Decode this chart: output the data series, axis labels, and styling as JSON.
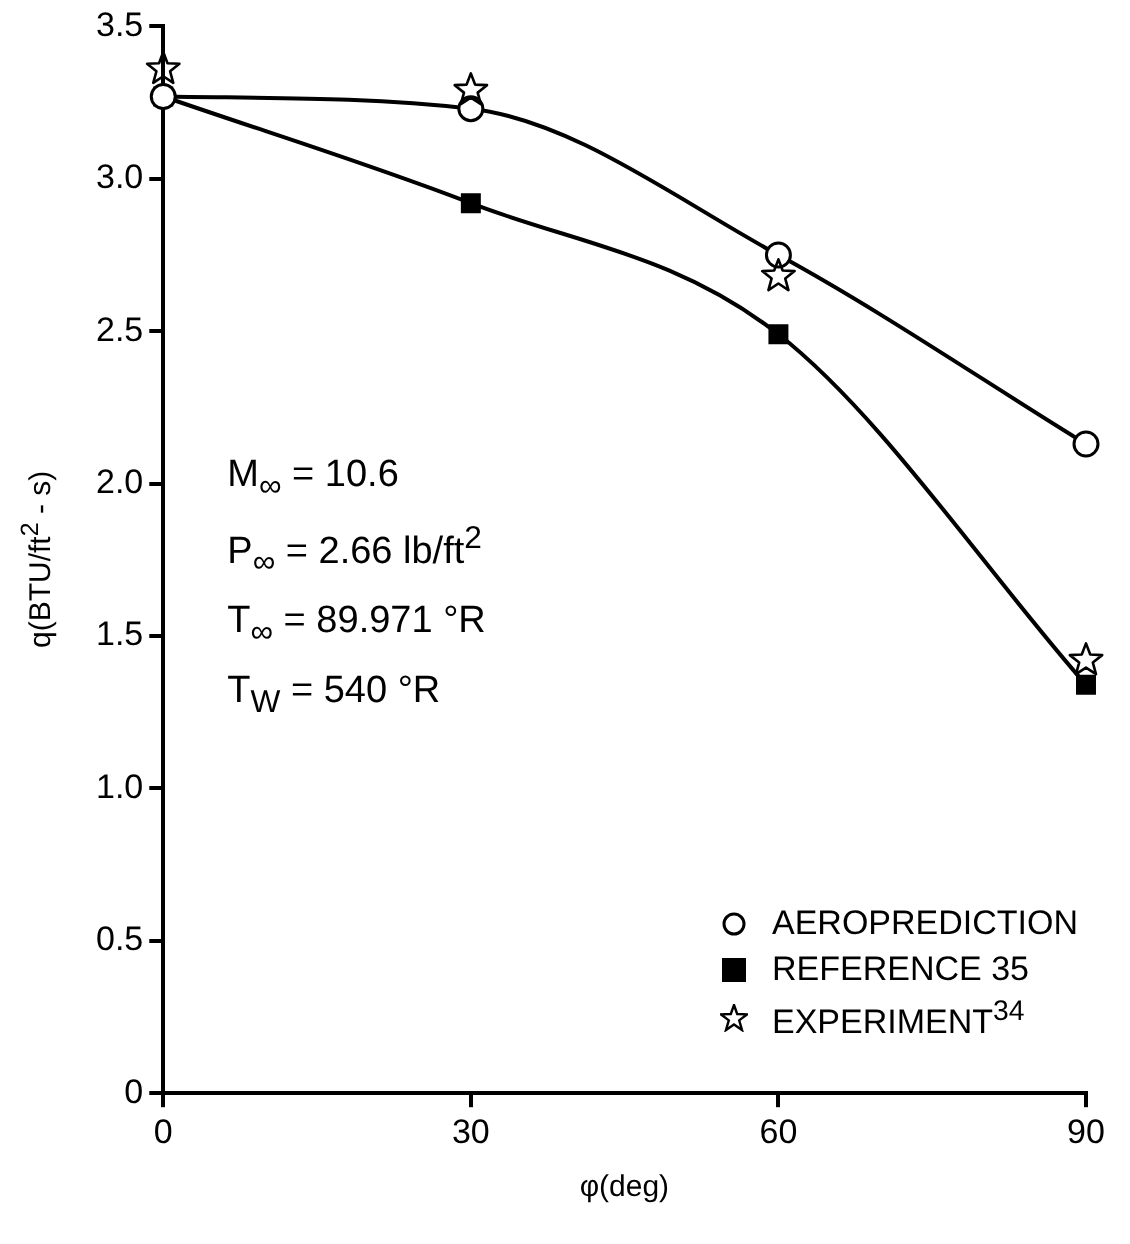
{
  "chart_data": {
    "type": "line",
    "xlabel": "φ(deg)",
    "ylabel": "q(BTU/ft$^{2}$ - s)",
    "x": [
      0,
      30,
      60,
      90
    ],
    "xlim": [
      0,
      90
    ],
    "xticks": [
      0,
      30,
      60,
      90
    ],
    "ylim": [
      0,
      3.5
    ],
    "yticks": [
      0,
      0.5,
      {
        "value": 1,
        "label": "1.0"
      },
      1.5,
      {
        "value": 2,
        "label": "2.0"
      },
      2.5,
      {
        "value": 3,
        "label": "3.0"
      },
      3.5
    ],
    "series": [
      {
        "name": "AEROPREDICTION",
        "color": "#000000",
        "marker": "circle",
        "line_style": "solid",
        "values": [
          3.27,
          3.23,
          2.75,
          2.13
        ]
      },
      {
        "name": "REFERENCE 35",
        "color": "#000000",
        "marker": "square",
        "line_style": "solid",
        "values": [
          3.27,
          2.92,
          2.49,
          1.34
        ]
      },
      {
        "name": "EXPERIMENT$^{34}$",
        "type": "scatter",
        "color": "#000000",
        "marker": "star",
        "values": [
          3.36,
          3.29,
          2.68,
          1.42
        ]
      }
    ],
    "annotations": [
      "M$_{∞}$ = 10.6",
      "P$_{∞}$ = 2.66 lb/ft$^{2}$",
      "T$_{∞}$ = 89.971 °R",
      "T$_{W}$ = 540 °R"
    ],
    "legend": "bottom right",
    "grid": false
  }
}
